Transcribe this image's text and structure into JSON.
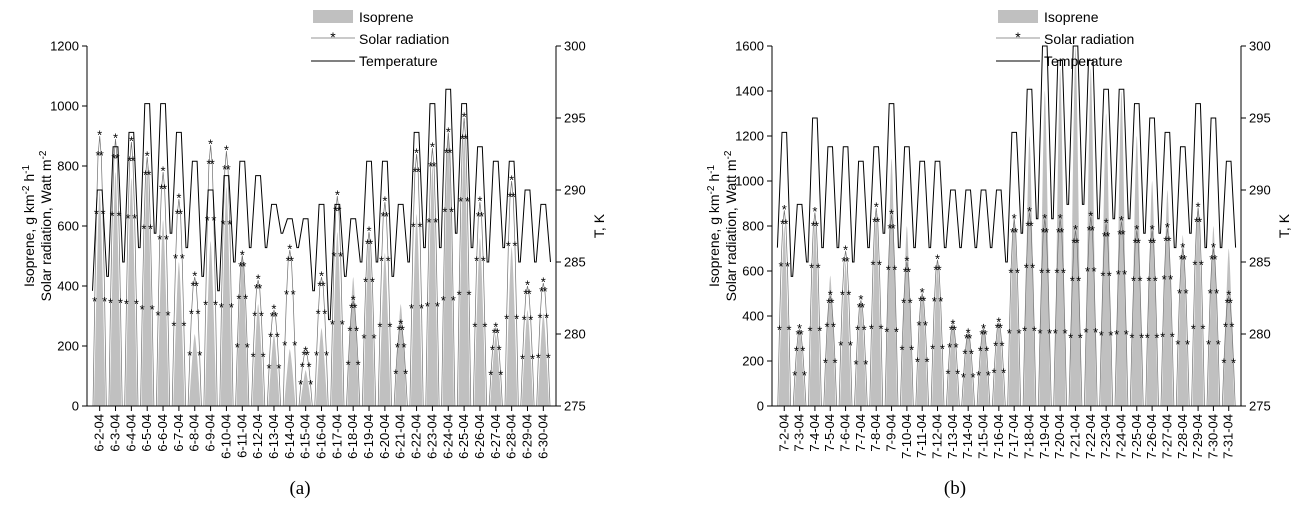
{
  "chart_data": [
    {
      "type": "bar",
      "caption": "(a)",
      "ylabel_left_line1": "Isoprene, g km",
      "ylabel_left_line2": "Solar radiation, Watt m",
      "ylabel_left_units": [
        "-2",
        "-1",
        "-2"
      ],
      "ylabel_right": "T, K",
      "ylim_left": [
        0,
        1200
      ],
      "ylim_right": [
        275,
        300
      ],
      "yticks_left": [
        "0",
        "200",
        "400",
        "600",
        "800",
        "1000",
        "1200"
      ],
      "yticks_right": [
        "275",
        "280",
        "285",
        "290",
        "295",
        "300"
      ],
      "legend": [
        "Isoprene",
        "Solar radiation",
        "Temperature"
      ],
      "legend_placement": "top-center",
      "categories": [
        "6-2-04",
        "6-3-04",
        "6-4-04",
        "6-5-04",
        "6-6-04",
        "6-7-04",
        "6-8-04",
        "6-9-04",
        "6-10-04",
        "6-11-04",
        "6-12-04",
        "6-13-04",
        "6-14-04",
        "6-15-04",
        "6-16-04",
        "6-17-04",
        "6-18-04",
        "6-19-04",
        "6-20-04",
        "6-21-04",
        "6-22-04",
        "6-23-04",
        "6-24-04",
        "6-25-04",
        "6-26-04",
        "6-27-04",
        "6-28-04",
        "6-29-04",
        "6-30-04"
      ],
      "series": [
        {
          "name": "Isoprene",
          "peaks": [
            720,
            780,
            760,
            800,
            620,
            480,
            240,
            550,
            730,
            520,
            340,
            240,
            190,
            120,
            260,
            580,
            430,
            560,
            510,
            340,
            640,
            800,
            930,
            910,
            560,
            240,
            530,
            320,
            310
          ]
        },
        {
          "name": "Solar radiation",
          "peaks": [
            900,
            890,
            880,
            830,
            780,
            690,
            430,
            870,
            850,
            500,
            420,
            320,
            520,
            180,
            430,
            700,
            350,
            580,
            680,
            270,
            840,
            860,
            910,
            960,
            680,
            260,
            750,
            400,
            410
          ]
        },
        {
          "name": "Temperature",
          "high": [
            290,
            293,
            294,
            296,
            296,
            294,
            292,
            290,
            291,
            292,
            291,
            289,
            288,
            288,
            289,
            289,
            288,
            292,
            292,
            289,
            294,
            296,
            297,
            296,
            293,
            292,
            292,
            290,
            289
          ],
          "low": [
            283,
            284,
            285,
            286,
            287,
            287,
            286,
            284,
            283,
            285,
            286,
            286,
            287,
            286,
            283,
            281,
            284,
            285,
            285,
            284,
            285,
            286,
            286,
            287,
            286,
            285,
            286,
            285,
            285
          ]
        }
      ]
    },
    {
      "type": "bar",
      "caption": "(b)",
      "ylabel_left_line1": "Isoprene, g km",
      "ylabel_left_line2": "Solar radiation, Watt m",
      "ylabel_left_units": [
        "-2",
        "-1",
        "-2"
      ],
      "ylabel_right": "T, K",
      "ylim_left": [
        0,
        1600
      ],
      "ylim_right": [
        275,
        300
      ],
      "yticks_left": [
        "0",
        "200",
        "400",
        "600",
        "800",
        "1000",
        "1200",
        "1400",
        "1600"
      ],
      "yticks_right": [
        "275",
        "280",
        "285",
        "290",
        "295",
        "300"
      ],
      "legend": [
        "Isoprene",
        "Solar radiation",
        "Temperature"
      ],
      "legend_placement": "top-center",
      "categories": [
        "7-2-04",
        "7-3-04",
        "7-4-04",
        "7-5-04",
        "7-6-04",
        "7-7-04",
        "7-8-04",
        "7-9-04",
        "7-10-04",
        "7-11-04",
        "7-12-04",
        "7-13-04",
        "7-14-04",
        "7-15-04",
        "7-16-04",
        "7-17-04",
        "7-18-04",
        "7-19-04",
        "7-20-04",
        "7-21-04",
        "7-22-04",
        "7-23-04",
        "7-24-04",
        "7-25-04",
        "7-26-04",
        "7-27-04",
        "7-28-04",
        "7-29-04",
        "7-30-04",
        "7-31-04"
      ],
      "series": [
        {
          "name": "Isoprene",
          "peaks": [
            800,
            350,
            820,
            580,
            640,
            470,
            860,
            1100,
            800,
            510,
            640,
            380,
            350,
            370,
            380,
            860,
            1200,
            1400,
            1500,
            1600,
            1500,
            1300,
            1400,
            1200,
            1000,
            960,
            760,
            900,
            800,
            700
          ]
        },
        {
          "name": "Solar radiation",
          "peaks": [
            870,
            340,
            860,
            490,
            690,
            470,
            880,
            850,
            640,
            500,
            650,
            360,
            320,
            340,
            370,
            830,
            860,
            830,
            830,
            780,
            840,
            810,
            820,
            780,
            780,
            790,
            700,
            880,
            700,
            490
          ]
        },
        {
          "name": "Temperature",
          "high": [
            294,
            289,
            295,
            293,
            293,
            292,
            293,
            296,
            293,
            292,
            292,
            290,
            290,
            290,
            290,
            294,
            297,
            300,
            299,
            300,
            299,
            297,
            297,
            296,
            295,
            294,
            293,
            296,
            295,
            292
          ],
          "low": [
            286,
            284,
            285,
            286,
            286,
            285,
            286,
            287,
            286,
            286,
            286,
            286,
            286,
            286,
            286,
            285,
            287,
            288,
            288,
            289,
            289,
            288,
            288,
            288,
            287,
            287,
            286,
            287,
            286,
            286
          ]
        }
      ]
    }
  ]
}
